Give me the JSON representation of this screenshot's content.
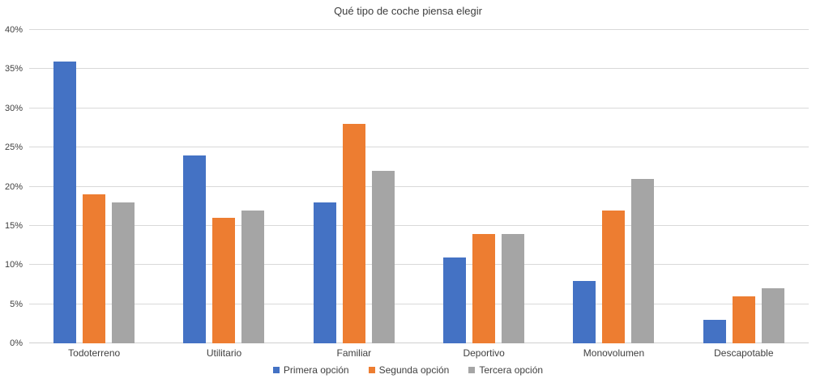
{
  "chart_data": {
    "type": "bar",
    "title": "Qué tipo de coche piensa elegir",
    "categories": [
      "Todoterreno",
      "Utilitario",
      "Familiar",
      "Deportivo",
      "Monovolumen",
      "Descapotable"
    ],
    "series": [
      {
        "name": "Primera opción",
        "color": "#4472C4",
        "values": [
          36,
          24,
          18,
          11,
          8,
          3
        ]
      },
      {
        "name": "Segunda opción",
        "color": "#ED7D31",
        "values": [
          19,
          16,
          28,
          14,
          17,
          6
        ]
      },
      {
        "name": "Tercera opción",
        "color": "#A5A5A5",
        "values": [
          18,
          17,
          22,
          14,
          21,
          7
        ]
      }
    ],
    "y_axis": {
      "min": 0,
      "max": 40,
      "step": 5,
      "tick_suffix": "%",
      "tick_labels": [
        "0%",
        "5%",
        "10%",
        "15%",
        "20%",
        "25%",
        "30%",
        "35%",
        "40%"
      ]
    },
    "grid": true,
    "legend_position": "bottom",
    "colors": {
      "gridline": "#D9D9D9",
      "axis_text": "#404040",
      "title_text": "#3D3D3D",
      "background": "#FFFFFF"
    }
  }
}
